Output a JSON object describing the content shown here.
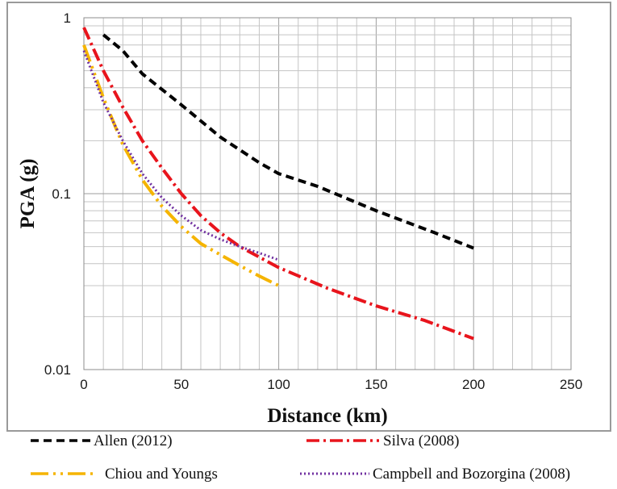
{
  "chart_data": {
    "type": "line",
    "xlabel": "Distance (km)",
    "ylabel": "PGA (g)",
    "xlim": [
      0,
      250
    ],
    "ylim": [
      0.01,
      1
    ],
    "yscale": "log",
    "grid": true,
    "legend_position": "bottom",
    "x_ticks": [
      "0",
      "50",
      "100",
      "150",
      "200",
      "250"
    ],
    "y_ticks": [
      "0.01",
      "0.1",
      "1"
    ],
    "series": [
      {
        "name": "Allen (2012)",
        "color": "#000000",
        "style": "dashed",
        "x": [
          10,
          20,
          30,
          50,
          70,
          90,
          100,
          120,
          150,
          180,
          200
        ],
        "y": [
          0.8,
          0.65,
          0.48,
          0.32,
          0.21,
          0.15,
          0.13,
          0.11,
          0.08,
          0.06,
          0.049
        ]
      },
      {
        "name": "Silva (2008)",
        "color": "#e8141c",
        "style": "dashdot",
        "x": [
          0,
          10,
          20,
          30,
          40,
          50,
          60,
          70,
          80,
          100,
          125,
          150,
          175,
          200
        ],
        "y": [
          0.88,
          0.5,
          0.31,
          0.2,
          0.14,
          0.1,
          0.075,
          0.06,
          0.05,
          0.038,
          0.029,
          0.023,
          0.019,
          0.015
        ]
      },
      {
        "name": "Chiou and Youngs",
        "color": "#f5b400",
        "style": "dashdotdot",
        "x": [
          0,
          10,
          20,
          30,
          40,
          50,
          60,
          70,
          80,
          90,
          100
        ],
        "y": [
          0.7,
          0.35,
          0.19,
          0.12,
          0.085,
          0.065,
          0.052,
          0.045,
          0.039,
          0.034,
          0.03
        ]
      },
      {
        "name": "Campbell and Bozorgina (2008)",
        "color": "#7030a0",
        "style": "dotted",
        "x": [
          0,
          10,
          20,
          30,
          40,
          50,
          60,
          70,
          80,
          90,
          100
        ],
        "y": [
          0.65,
          0.33,
          0.2,
          0.13,
          0.095,
          0.075,
          0.062,
          0.055,
          0.05,
          0.046,
          0.042
        ]
      }
    ]
  }
}
